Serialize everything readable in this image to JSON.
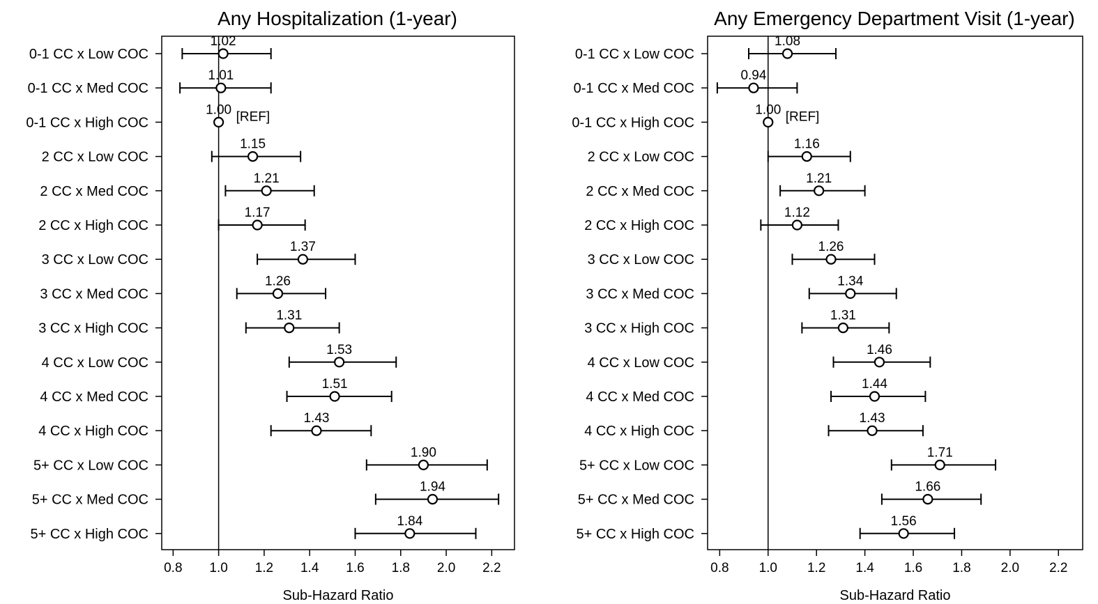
{
  "chart_data": [
    {
      "type": "forest",
      "title": "Any Hospitalization (1-year)",
      "xlabel": "Sub-Hazard Ratio",
      "xlim": [
        0.75,
        2.3
      ],
      "xticks": [
        0.8,
        1.0,
        1.2,
        1.4,
        1.6,
        1.8,
        2.0,
        2.2
      ],
      "xtick_labels": [
        "0.8",
        "1.0",
        "1.2",
        "1.4",
        "1.6",
        "1.8",
        "2.0",
        "2.2"
      ],
      "reference_line": 1.0,
      "categories": [
        "0-1 CC x Low COC",
        "0-1 CC x Med COC",
        "0-1 CC x High COC",
        "2 CC x Low COC",
        "2 CC x Med COC",
        "2 CC x High COC",
        "3 CC x Low COC",
        "3 CC x Med COC",
        "3 CC x High COC",
        "4 CC x Low COC",
        "4 CC x Med COC",
        "4 CC x High COC",
        "5+ CC x Low COC",
        "5+ CC x Med COC",
        "5+ CC x High COC"
      ],
      "estimates": [
        1.02,
        1.01,
        1.0,
        1.15,
        1.21,
        1.17,
        1.37,
        1.26,
        1.31,
        1.53,
        1.51,
        1.43,
        1.9,
        1.94,
        1.84
      ],
      "lower": [
        0.84,
        0.83,
        null,
        0.97,
        1.03,
        1.0,
        1.17,
        1.08,
        1.12,
        1.31,
        1.3,
        1.23,
        1.65,
        1.69,
        1.6
      ],
      "upper": [
        1.23,
        1.23,
        null,
        1.36,
        1.42,
        1.38,
        1.6,
        1.47,
        1.53,
        1.78,
        1.76,
        1.67,
        2.18,
        2.23,
        2.13
      ],
      "labels": [
        "1.02",
        "1.01",
        "1.00",
        "1.15",
        "1.21",
        "1.17",
        "1.37",
        "1.26",
        "1.31",
        "1.53",
        "1.51",
        "1.43",
        "1.90",
        "1.94",
        "1.84"
      ],
      "ref_tag": "[REF]",
      "ref_index": 2
    },
    {
      "type": "forest",
      "title": "Any Emergency Department Visit (1-year)",
      "xlabel": "Sub-Hazard Ratio",
      "xlim": [
        0.75,
        2.3
      ],
      "xticks": [
        0.8,
        1.0,
        1.2,
        1.4,
        1.6,
        1.8,
        2.0,
        2.2
      ],
      "xtick_labels": [
        "0.8",
        "1.0",
        "1.2",
        "1.4",
        "1.6",
        "1.8",
        "2.0",
        "2.2"
      ],
      "reference_line": 1.0,
      "categories": [
        "0-1 CC x Low COC",
        "0-1 CC x Med COC",
        "0-1 CC x High COC",
        "2 CC x Low COC",
        "2 CC x Med COC",
        "2 CC x High COC",
        "3 CC x Low COC",
        "3 CC x Med COC",
        "3 CC x High COC",
        "4 CC x Low COC",
        "4 CC x Med COC",
        "4 CC x High COC",
        "5+ CC x Low COC",
        "5+ CC x Med COC",
        "5+ CC x High COC"
      ],
      "estimates": [
        1.08,
        0.94,
        1.0,
        1.16,
        1.21,
        1.12,
        1.26,
        1.34,
        1.31,
        1.46,
        1.44,
        1.43,
        1.71,
        1.66,
        1.56
      ],
      "lower": [
        0.92,
        0.79,
        null,
        1.0,
        1.05,
        0.97,
        1.1,
        1.17,
        1.14,
        1.27,
        1.26,
        1.25,
        1.51,
        1.47,
        1.38
      ],
      "upper": [
        1.28,
        1.12,
        null,
        1.34,
        1.4,
        1.29,
        1.44,
        1.53,
        1.5,
        1.67,
        1.65,
        1.64,
        1.94,
        1.88,
        1.77
      ],
      "labels": [
        "1.08",
        "0.94",
        "1.00",
        "1.16",
        "1.21",
        "1.12",
        "1.26",
        "1.34",
        "1.31",
        "1.46",
        "1.44",
        "1.43",
        "1.71",
        "1.66",
        "1.56"
      ],
      "ref_tag": "[REF]",
      "ref_index": 2
    }
  ]
}
